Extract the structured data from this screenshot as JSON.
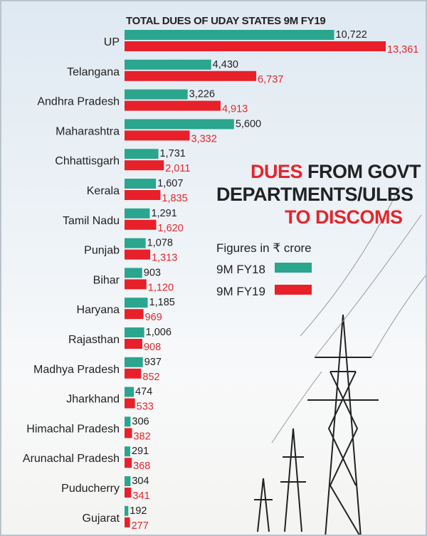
{
  "chart_data": {
    "type": "bar",
    "orientation": "horizontal",
    "title": "TOTAL DUES OF UDAY STATES 9M FY19",
    "headline": {
      "part1": "DUES",
      "part2": " FROM GOVT",
      "line2": "DEPARTMENTS/ULBS",
      "line3": "TO DISCOMS"
    },
    "unit_note": "Figures in ₹ crore",
    "categories": [
      "UP",
      "Telangana",
      "Andhra Pradesh",
      "Maharashtra",
      "Chhattisgarh",
      "Kerala",
      "Tamil Nadu",
      "Punjab",
      "Bihar",
      "Haryana",
      "Rajasthan",
      "Madhya Pradesh",
      "Jharkhand",
      "Himachal Pradesh",
      "Arunachal Pradesh",
      "Puducherry",
      "Gujarat"
    ],
    "series": [
      {
        "name": "9M FY18",
        "color": "#2aa58e",
        "values": [
          10722,
          4430,
          3226,
          5600,
          1731,
          1607,
          1291,
          1078,
          903,
          1185,
          1006,
          937,
          474,
          306,
          291,
          304,
          192
        ],
        "labels": [
          "10,722",
          "4,430",
          "3,226",
          "5,600",
          "1,731",
          "1,607",
          "1,291",
          "1,078",
          "903",
          "1,185",
          "1,006",
          "937",
          "474",
          "306",
          "291",
          "304",
          "192"
        ]
      },
      {
        "name": "9M FY19",
        "color": "#e8202a",
        "values": [
          13361,
          6737,
          4913,
          3332,
          2011,
          1835,
          1620,
          1313,
          1120,
          969,
          908,
          852,
          533,
          382,
          368,
          341,
          277
        ],
        "labels": [
          "13,361",
          "6,737",
          "4,913",
          "3,332",
          "2,011",
          "1,835",
          "1,620",
          "1,313",
          "1,120",
          "969",
          "908",
          "852",
          "533",
          "382",
          "368",
          "341",
          "277"
        ]
      }
    ],
    "xlim": [
      0,
      13361
    ],
    "grid": false,
    "legend": "right"
  }
}
